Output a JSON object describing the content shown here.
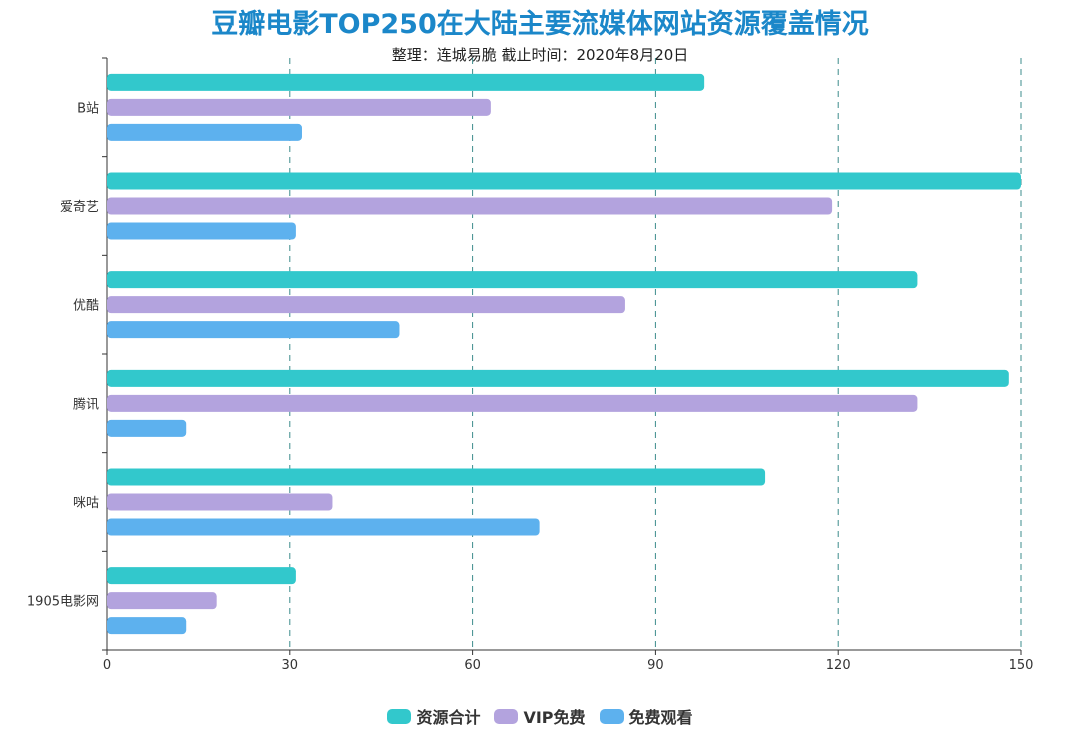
{
  "header": {
    "title": "豆瓣电影TOP250在大陆主要流媒体网站资源覆盖情况",
    "subtitle": "整理：连城易脆 截止时间：2020年8月20日"
  },
  "chart_data": {
    "type": "bar",
    "orientation": "horizontal",
    "title": "豆瓣电影TOP250在大陆主要流媒体网站资源覆盖情况",
    "subtitle": "整理：连城易脆 截止时间：2020年8月20日",
    "categories": [
      "B站",
      "爱奇艺",
      "优酷",
      "腾讯",
      "咪咕",
      "1905电影网"
    ],
    "series": [
      {
        "name": "资源合计",
        "color": "#32c8cc",
        "values": [
          98,
          150,
          133,
          148,
          108,
          31
        ]
      },
      {
        "name": "VIP免费",
        "color": "#b3a3de",
        "values": [
          63,
          119,
          85,
          133,
          37,
          18
        ]
      },
      {
        "name": "免费观看",
        "color": "#5db1ee",
        "values": [
          32,
          31,
          48,
          13,
          71,
          13
        ]
      }
    ],
    "xlim": [
      0,
      150
    ],
    "xticks": [
      "0",
      "30",
      "60",
      "90",
      "120",
      "150"
    ],
    "grid": "vertical dashed",
    "legend_position": "bottom-center"
  }
}
